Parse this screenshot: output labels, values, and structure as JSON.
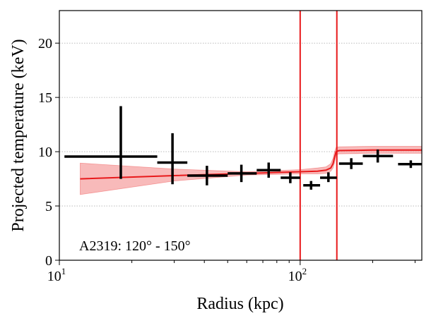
{
  "chart_data": {
    "type": "scatter",
    "xscale": "log",
    "xlim": [
      10,
      320
    ],
    "ylim": [
      0,
      23
    ],
    "xlabel": "Radius (kpc)",
    "ylabel": "Projected temperature (keV)",
    "grid": "horizontal dotted",
    "xticks": [
      {
        "value": 10,
        "base": "10",
        "exp": "1"
      },
      {
        "value": 100,
        "base": "10",
        "exp": "2"
      }
    ],
    "yticks": [
      {
        "value": 0,
        "label": "0"
      },
      {
        "value": 5,
        "label": "5"
      },
      {
        "value": 10,
        "label": "10"
      },
      {
        "value": 15,
        "label": "15"
      },
      {
        "value": 20,
        "label": "20"
      }
    ],
    "annotation": "A2319: 120° - 150°",
    "points": [
      {
        "x": 18.0,
        "y": 9.55,
        "xerr": [
          10.5,
          25.5
        ],
        "yerr": [
          7.5,
          14.2
        ]
      },
      {
        "x": 29.5,
        "y": 9.0,
        "xerr": [
          25.5,
          34.0
        ],
        "yerr": [
          7.0,
          11.7
        ]
      },
      {
        "x": 41.0,
        "y": 7.8,
        "xerr": [
          34.0,
          50.0
        ],
        "yerr": [
          6.9,
          8.7
        ]
      },
      {
        "x": 57.0,
        "y": 8.0,
        "xerr": [
          50.0,
          66.0
        ],
        "yerr": [
          7.2,
          8.8
        ]
      },
      {
        "x": 74.0,
        "y": 8.3,
        "xerr": [
          66.0,
          83.0
        ],
        "yerr": [
          7.6,
          9.0
        ]
      },
      {
        "x": 91.0,
        "y": 7.6,
        "xerr": [
          83.0,
          100.0
        ],
        "yerr": [
          7.1,
          8.1
        ]
      },
      {
        "x": 111.0,
        "y": 6.9,
        "xerr": [
          103.0,
          121.0
        ],
        "yerr": [
          6.5,
          7.3
        ]
      },
      {
        "x": 131.0,
        "y": 7.6,
        "xerr": [
          121.0,
          142.0
        ],
        "yerr": [
          7.2,
          8.1
        ]
      },
      {
        "x": 163.0,
        "y": 8.9,
        "xerr": [
          145.0,
          182.0
        ],
        "yerr": [
          8.4,
          9.4
        ]
      },
      {
        "x": 210.0,
        "y": 9.6,
        "xerr": [
          182.0,
          243.0
        ],
        "yerr": [
          9.0,
          10.2
        ]
      },
      {
        "x": 288.0,
        "y": 8.85,
        "xerr": [
          255.0,
          320.0
        ],
        "yerr": [
          8.5,
          9.2
        ]
      }
    ],
    "model": {
      "color": "#e8191b",
      "band_color": "#f5a3a3",
      "line": [
        [
          12.2,
          7.5
        ],
        [
          30,
          7.8
        ],
        [
          60,
          8.0
        ],
        [
          100,
          8.15
        ],
        [
          118,
          8.2
        ],
        [
          128,
          8.3
        ],
        [
          134,
          8.5
        ],
        [
          137,
          8.9
        ],
        [
          139,
          9.5
        ],
        [
          141,
          10.0
        ],
        [
          145,
          10.1
        ],
        [
          200,
          10.15
        ],
        [
          320,
          10.15
        ]
      ],
      "band_low": [
        [
          12.2,
          6.05
        ],
        [
          30,
          7.3
        ],
        [
          60,
          7.85
        ],
        [
          100,
          7.95
        ],
        [
          118,
          7.95
        ],
        [
          128,
          8.0
        ],
        [
          134,
          8.2
        ],
        [
          137,
          8.5
        ],
        [
          139,
          9.0
        ],
        [
          141,
          9.7
        ],
        [
          145,
          9.8
        ],
        [
          200,
          9.85
        ],
        [
          320,
          9.85
        ]
      ],
      "band_high": [
        [
          12.2,
          8.95
        ],
        [
          30,
          8.4
        ],
        [
          60,
          8.15
        ],
        [
          100,
          8.35
        ],
        [
          118,
          8.5
        ],
        [
          128,
          8.6
        ],
        [
          134,
          8.9
        ],
        [
          137,
          9.4
        ],
        [
          139,
          10.0
        ],
        [
          141,
          10.4
        ],
        [
          145,
          10.45
        ],
        [
          200,
          10.5
        ],
        [
          320,
          10.5
        ]
      ]
    },
    "vlines": [
      {
        "x": 100,
        "color": "#e8191b"
      },
      {
        "x": 142,
        "color": "#e8191b"
      }
    ]
  }
}
